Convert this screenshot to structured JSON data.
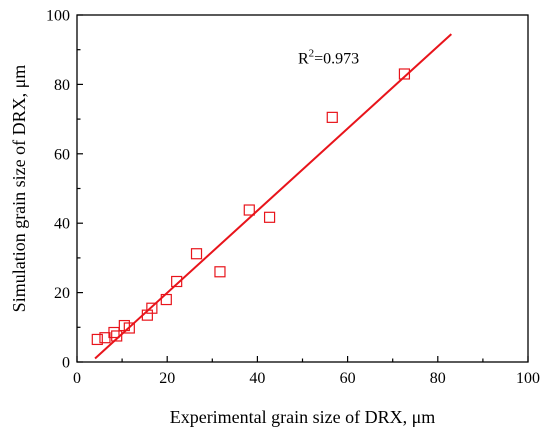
{
  "chart_data": {
    "type": "scatter",
    "xlabel": "Experimental grain size of DRX, μm",
    "ylabel": "Simulation grain size of DRX, μm",
    "xlim": [
      0,
      100
    ],
    "ylim": [
      0,
      100
    ],
    "xticks": [
      0,
      20,
      40,
      60,
      80,
      100
    ],
    "yticks": [
      0,
      20,
      40,
      60,
      80,
      100
    ],
    "grid": false,
    "annotation": {
      "prefix": "R",
      "sup": "2",
      "suffix": "=0.973"
    },
    "color": "#e8141b",
    "points": [
      {
        "x": 4.5,
        "y": 6.5
      },
      {
        "x": 6.2,
        "y": 7.0
      },
      {
        "x": 8.2,
        "y": 8.5
      },
      {
        "x": 8.8,
        "y": 7.5
      },
      {
        "x": 10.5,
        "y": 10.5
      },
      {
        "x": 11.6,
        "y": 9.8
      },
      {
        "x": 15.6,
        "y": 13.5
      },
      {
        "x": 16.6,
        "y": 15.5
      },
      {
        "x": 19.8,
        "y": 18.0
      },
      {
        "x": 22.1,
        "y": 23.2
      },
      {
        "x": 26.5,
        "y": 31.2
      },
      {
        "x": 31.7,
        "y": 26.0
      },
      {
        "x": 38.2,
        "y": 43.8
      },
      {
        "x": 42.7,
        "y": 41.7
      },
      {
        "x": 56.6,
        "y": 70.5
      },
      {
        "x": 72.6,
        "y": 83.0
      }
    ],
    "fit_line": {
      "x": [
        4.0,
        83.0
      ],
      "y": [
        1.0,
        94.5
      ]
    }
  }
}
